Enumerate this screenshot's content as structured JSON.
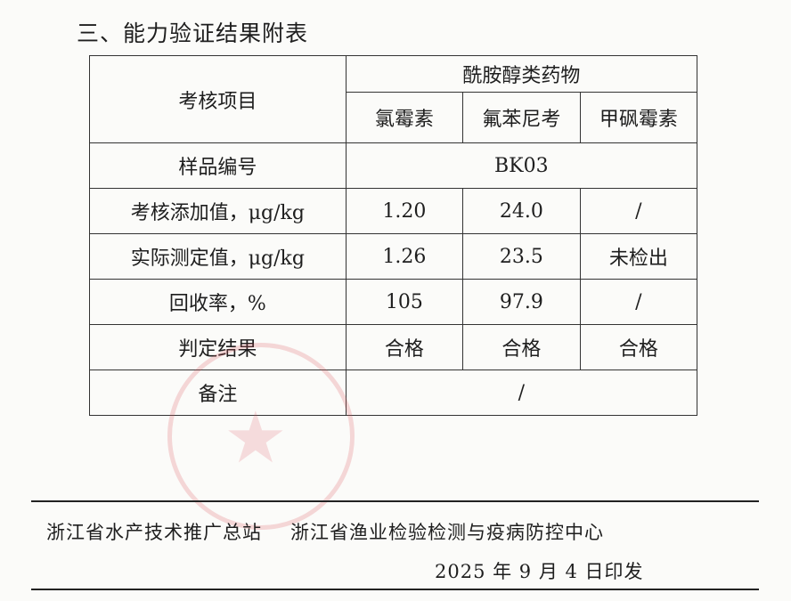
{
  "section_title": "三、能力验证结果附表",
  "table": {
    "item_header": "考核项目",
    "group_header": "酰胺醇类药物",
    "drugs": [
      "氯霉素",
      "氟苯尼考",
      "甲砜霉素"
    ],
    "sample_label": "样品编号",
    "sample_id": "BK03",
    "rows": [
      {
        "label": "考核添加值，μg/kg",
        "values": [
          "1.20",
          "24.0",
          "/"
        ]
      },
      {
        "label": "实际测定值，μg/kg",
        "values": [
          "1.26",
          "23.5",
          "未检出"
        ]
      },
      {
        "label": "回收率，%",
        "values": [
          "105",
          "97.9",
          "/"
        ]
      },
      {
        "label": "判定结果",
        "values": [
          "合格",
          "合格",
          "合格"
        ]
      }
    ],
    "remark_label": "备注",
    "remark_value": "/"
  },
  "footer": {
    "issuer1": "浙江省水产技术推广总站",
    "issuer2": "浙江省渔业检验检测与疫病防控中心",
    "date_line": "2025 年 9 月 4 日印发"
  },
  "colors": {
    "stamp": "#dc505a"
  }
}
